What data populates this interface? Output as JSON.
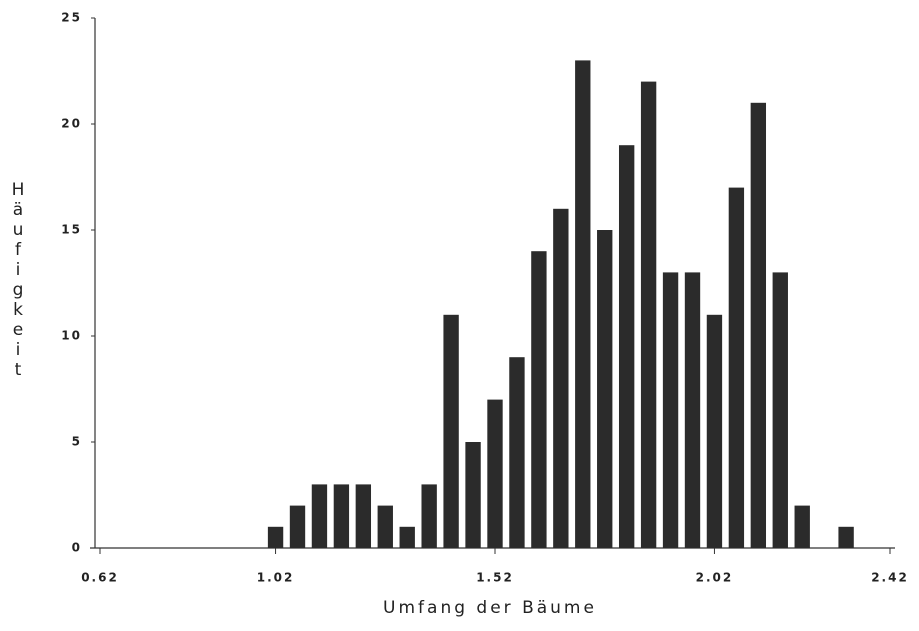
{
  "chart_data": {
    "type": "histogram",
    "xlabel": "Umfang der Bäume",
    "ylabel": "Häufigkeit",
    "bins": [
      0.995,
      1.045,
      1.095,
      1.145,
      1.195,
      1.245,
      1.295,
      1.345,
      1.395,
      1.445,
      1.495,
      1.545,
      1.595,
      1.645,
      1.695,
      1.745,
      1.795,
      1.845,
      1.895,
      1.945,
      1.995,
      2.045,
      2.095,
      2.145,
      2.195,
      2.245,
      2.295,
      2.345
    ],
    "counts": [
      1,
      2,
      3,
      3,
      3,
      2,
      1,
      3,
      11,
      5,
      7,
      9,
      14,
      16,
      23,
      15,
      19,
      22,
      13,
      13,
      11,
      17,
      21,
      13,
      2,
      0,
      1
    ],
    "color": "#2b2b2b",
    "xlim": [
      0.62,
      2.42
    ],
    "xticks": [
      0.62,
      1.02,
      1.52,
      2.02,
      2.42
    ],
    "ylim": [
      0,
      25
    ],
    "yticks": [
      0,
      5,
      10,
      15,
      20,
      25
    ]
  }
}
